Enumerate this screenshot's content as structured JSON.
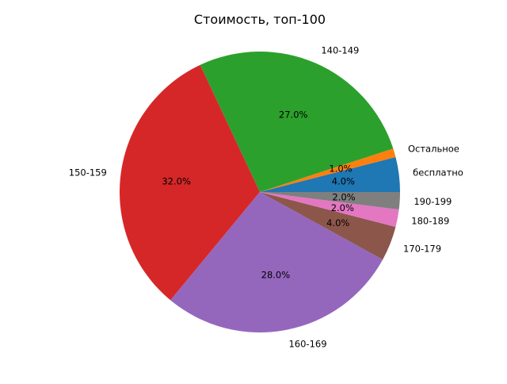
{
  "chart_data": {
    "type": "pie",
    "title": "Стоимость, топ-100",
    "categories": [
      "бесплатно",
      "Остальное",
      "140-149",
      "150-159",
      "160-169",
      "170-179",
      "180-189",
      "190-199"
    ],
    "values": [
      4.0,
      1.0,
      27.0,
      32.0,
      28.0,
      4.0,
      2.0,
      2.0
    ],
    "value_labels": [
      "4.0%",
      "1.0%",
      "27.0%",
      "32.0%",
      "28.0%",
      "4.0%",
      "2.0%",
      "2.0%"
    ],
    "colors": [
      "#1f77b4",
      "#ff7f0e",
      "#2ca02c",
      "#d62728",
      "#9467bd",
      "#8c564b",
      "#e377c2",
      "#7f7f7f"
    ],
    "start_angle_deg": 0,
    "direction": "counterclockwise"
  }
}
